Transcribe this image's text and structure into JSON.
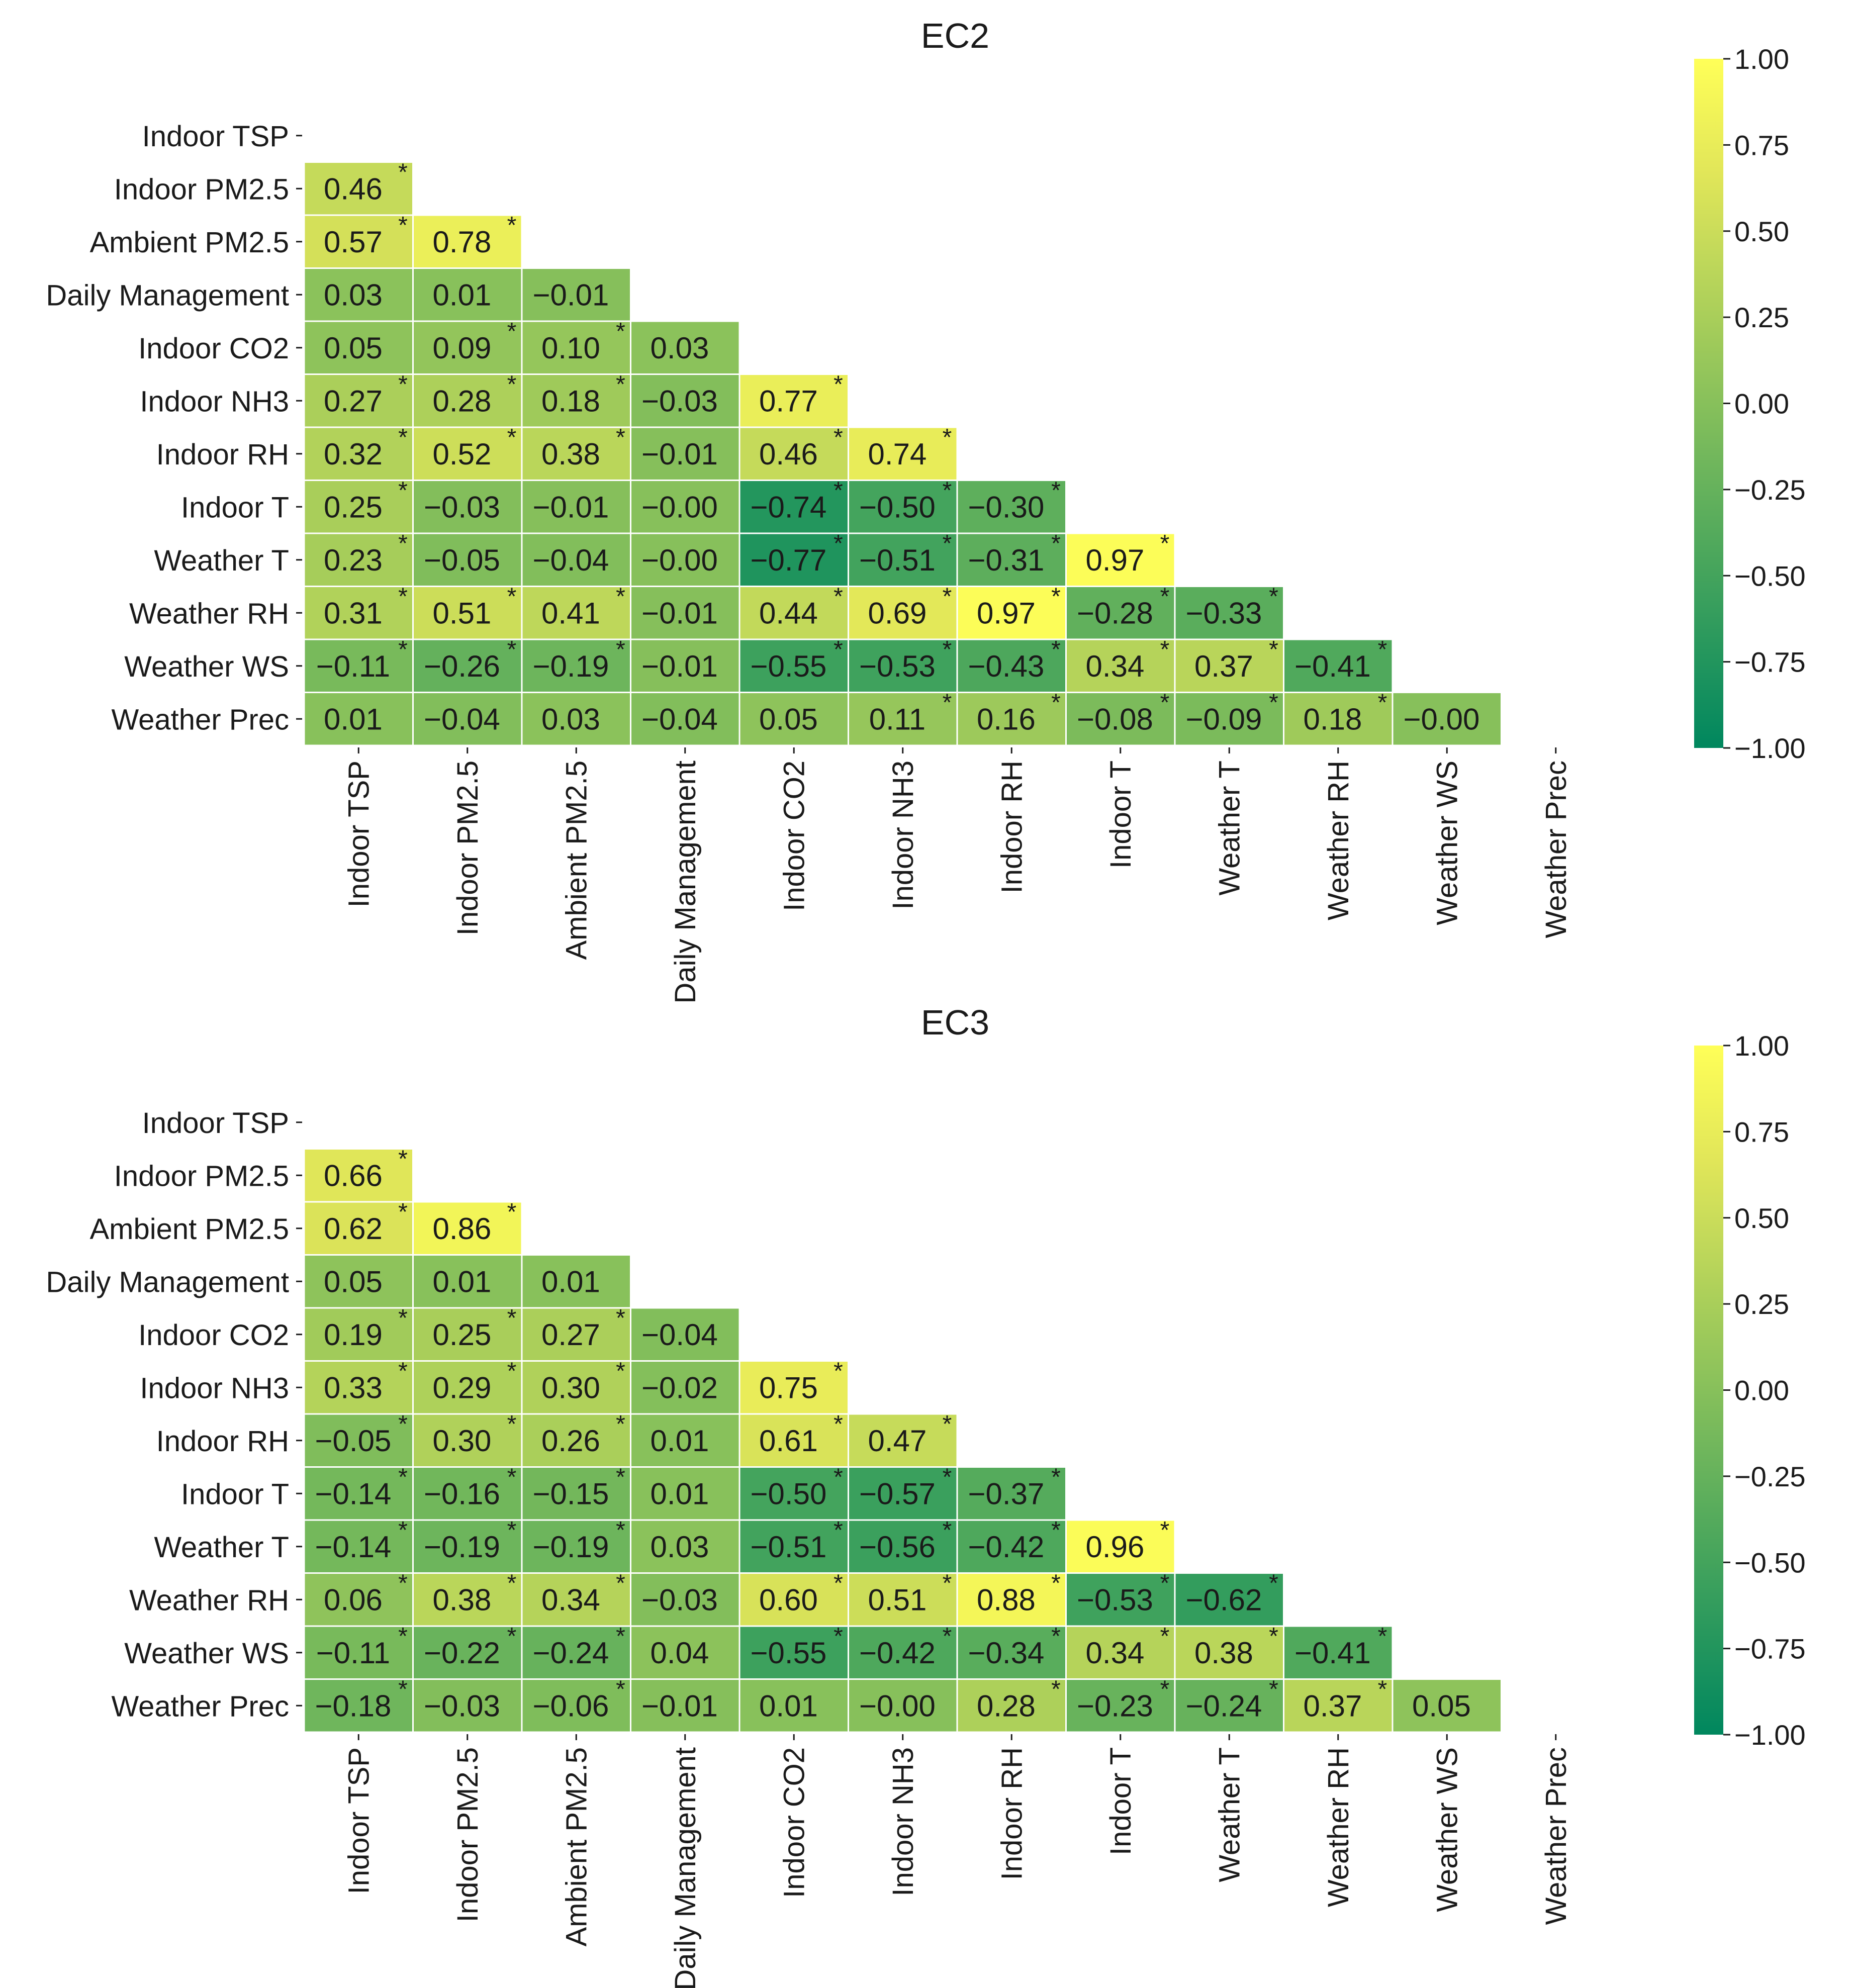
{
  "chart_data": [
    {
      "type": "heatmap",
      "title": "EC2",
      "variables": [
        "Indoor TSP",
        "Indoor PM2.5",
        "Ambient PM2.5",
        "Daily Management",
        "Indoor CO2",
        "Indoor NH3",
        "Indoor RH",
        "Indoor T",
        "Weather T",
        "Weather RH",
        "Weather WS",
        "Weather Prec"
      ],
      "values": [
        [],
        [
          0.46
        ],
        [
          0.57,
          0.78
        ],
        [
          0.03,
          0.01,
          -0.01
        ],
        [
          0.05,
          0.09,
          0.1,
          0.03
        ],
        [
          0.27,
          0.28,
          0.18,
          -0.03,
          0.77
        ],
        [
          0.32,
          0.52,
          0.38,
          -0.01,
          0.46,
          0.74
        ],
        [
          0.25,
          -0.03,
          -0.01,
          -0.0,
          -0.74,
          -0.5,
          -0.3
        ],
        [
          0.23,
          -0.05,
          -0.04,
          -0.0,
          -0.77,
          -0.51,
          -0.31,
          0.97
        ],
        [
          0.31,
          0.51,
          0.41,
          -0.01,
          0.44,
          0.69,
          0.97,
          -0.28,
          -0.33
        ],
        [
          -0.11,
          -0.26,
          -0.19,
          -0.01,
          -0.55,
          -0.53,
          -0.43,
          0.34,
          0.37,
          -0.41
        ],
        [
          0.01,
          -0.04,
          0.03,
          -0.04,
          0.05,
          0.11,
          0.16,
          -0.08,
          -0.09,
          0.18,
          -0.0
        ]
      ],
      "significant": [
        [],
        [
          true
        ],
        [
          true,
          true
        ],
        [
          false,
          false,
          false
        ],
        [
          false,
          true,
          true,
          false
        ],
        [
          true,
          true,
          true,
          false,
          true
        ],
        [
          true,
          true,
          true,
          false,
          true,
          true
        ],
        [
          true,
          false,
          false,
          false,
          true,
          true,
          true
        ],
        [
          true,
          false,
          false,
          false,
          true,
          true,
          true,
          true
        ],
        [
          true,
          true,
          true,
          false,
          true,
          true,
          true,
          true,
          true
        ],
        [
          true,
          true,
          true,
          false,
          true,
          true,
          true,
          true,
          true,
          true
        ],
        [
          false,
          false,
          false,
          false,
          false,
          true,
          true,
          true,
          true,
          true,
          false
        ]
      ],
      "colorbar": {
        "range": [
          -1,
          1
        ],
        "ticks": [
          "1.00",
          "0.75",
          "0.50",
          "0.25",
          "0.00",
          "−0.25",
          "−0.50",
          "−0.75",
          "−1.00"
        ]
      }
    },
    {
      "type": "heatmap",
      "title": "EC3",
      "variables": [
        "Indoor TSP",
        "Indoor PM2.5",
        "Ambient PM2.5",
        "Daily Management",
        "Indoor CO2",
        "Indoor NH3",
        "Indoor RH",
        "Indoor T",
        "Weather T",
        "Weather RH",
        "Weather WS",
        "Weather Prec"
      ],
      "values": [
        [],
        [
          0.66
        ],
        [
          0.62,
          0.86
        ],
        [
          0.05,
          0.01,
          0.01
        ],
        [
          0.19,
          0.25,
          0.27,
          -0.04
        ],
        [
          0.33,
          0.29,
          0.3,
          -0.02,
          0.75
        ],
        [
          -0.05,
          0.3,
          0.26,
          0.01,
          0.61,
          0.47
        ],
        [
          -0.14,
          -0.16,
          -0.15,
          0.01,
          -0.5,
          -0.57,
          -0.37
        ],
        [
          -0.14,
          -0.19,
          -0.19,
          0.03,
          -0.51,
          -0.56,
          -0.42,
          0.96
        ],
        [
          0.06,
          0.38,
          0.34,
          -0.03,
          0.6,
          0.51,
          0.88,
          -0.53,
          -0.62
        ],
        [
          -0.11,
          -0.22,
          -0.24,
          0.04,
          -0.55,
          -0.42,
          -0.34,
          0.34,
          0.38,
          -0.41
        ],
        [
          -0.18,
          -0.03,
          -0.06,
          -0.01,
          0.01,
          -0.0,
          0.28,
          -0.23,
          -0.24,
          0.37,
          0.05
        ]
      ],
      "significant": [
        [],
        [
          true
        ],
        [
          true,
          true
        ],
        [
          false,
          false,
          false
        ],
        [
          true,
          true,
          true,
          false
        ],
        [
          true,
          true,
          true,
          false,
          true
        ],
        [
          true,
          true,
          true,
          false,
          true,
          true
        ],
        [
          true,
          true,
          true,
          false,
          true,
          true,
          true
        ],
        [
          true,
          true,
          true,
          false,
          true,
          true,
          true,
          true
        ],
        [
          true,
          true,
          true,
          false,
          true,
          true,
          true,
          true,
          true
        ],
        [
          true,
          true,
          true,
          false,
          true,
          true,
          true,
          true,
          true,
          true
        ],
        [
          true,
          false,
          true,
          false,
          false,
          false,
          true,
          true,
          true,
          true,
          false
        ]
      ],
      "colorbar": {
        "range": [
          -1,
          1
        ],
        "ticks": [
          "1.00",
          "0.75",
          "0.50",
          "0.25",
          "0.00",
          "−0.25",
          "−0.50",
          "−0.75",
          "−1.00"
        ]
      }
    }
  ],
  "colors": {
    "colormap": [
      "#00875e",
      "#2d9a5d",
      "#5aad5c",
      "#87c05b",
      "#b4d35a",
      "#e1e659",
      "#ffff58"
    ],
    "cell_border": "#ffffff",
    "text": "#1a1a1a"
  }
}
